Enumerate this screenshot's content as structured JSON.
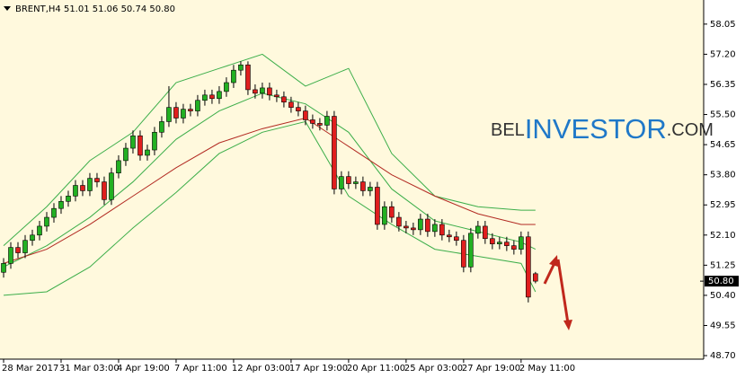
{
  "chart_data": {
    "type": "candlestick",
    "title": "BRENT,H4 51.01 51.06 50.74 50.80",
    "watermark": [
      "BEL",
      "INVESTOR",
      ".COM"
    ],
    "up_color": "#22b022",
    "down_color": "#e01e1e",
    "open": [
      51.05,
      51.3,
      51.75,
      51.6,
      51.95,
      52.1,
      52.35,
      52.6,
      52.85,
      53.05,
      53.2,
      53.5,
      53.35,
      53.7,
      53.6,
      53.1,
      53.85,
      54.2,
      54.55,
      54.9,
      54.35,
      54.5,
      55.0,
      55.3,
      55.7,
      55.4,
      55.65,
      55.6,
      55.9,
      56.05,
      55.95,
      56.15,
      56.4,
      56.75,
      56.9,
      56.2,
      56.1,
      56.25,
      56.05,
      56.0,
      55.85,
      55.7,
      55.6,
      55.35,
      55.25,
      55.2,
      55.45,
      53.4,
      53.75,
      53.55,
      53.6,
      53.35,
      53.45,
      52.4,
      52.9,
      52.6,
      52.35,
      52.3,
      52.25,
      52.55,
      52.2,
      52.4,
      52.1,
      52.05,
      51.95,
      51.2,
      52.15,
      52.35,
      52.0,
      51.85,
      51.9,
      51.8,
      51.7,
      52.05,
      51.01
    ],
    "high": [
      51.45,
      51.9,
      51.9,
      52.1,
      52.25,
      52.5,
      52.75,
      53.0,
      53.2,
      53.35,
      53.65,
      53.65,
      53.85,
      53.85,
      53.75,
      54.0,
      54.35,
      54.7,
      55.05,
      55.05,
      54.65,
      55.15,
      55.45,
      56.3,
      55.85,
      55.8,
      55.8,
      56.05,
      56.2,
      56.2,
      56.3,
      56.55,
      56.9,
      57.0,
      57.0,
      56.35,
      56.4,
      56.4,
      56.2,
      56.15,
      56.0,
      55.85,
      55.75,
      55.5,
      55.4,
      55.6,
      55.6,
      53.9,
      53.9,
      53.75,
      53.75,
      53.6,
      53.6,
      53.05,
      53.05,
      52.75,
      52.5,
      52.45,
      52.7,
      52.7,
      52.55,
      52.55,
      52.25,
      52.2,
      52.1,
      52.3,
      52.5,
      52.5,
      52.15,
      52.05,
      52.05,
      51.95,
      52.2,
      52.2,
      51.06
    ],
    "low": [
      50.9,
      51.15,
      51.45,
      51.45,
      51.8,
      51.95,
      52.2,
      52.45,
      52.7,
      52.9,
      53.05,
      53.2,
      53.2,
      53.45,
      52.95,
      52.95,
      53.7,
      54.05,
      54.4,
      54.2,
      54.2,
      54.35,
      54.85,
      55.15,
      55.25,
      55.25,
      55.45,
      55.45,
      55.75,
      55.8,
      55.8,
      56.0,
      56.25,
      56.6,
      56.05,
      55.95,
      55.95,
      55.9,
      55.85,
      55.7,
      55.55,
      55.45,
      55.2,
      55.1,
      55.05,
      55.05,
      53.25,
      53.25,
      53.4,
      53.4,
      53.2,
      53.2,
      52.25,
      52.25,
      52.45,
      52.2,
      52.15,
      52.1,
      52.1,
      52.05,
      52.05,
      51.95,
      51.9,
      51.8,
      51.05,
      51.05,
      52.0,
      51.85,
      51.7,
      51.7,
      51.65,
      51.55,
      51.55,
      50.2,
      50.74
    ],
    "close": [
      51.3,
      51.75,
      51.6,
      51.95,
      52.1,
      52.35,
      52.6,
      52.85,
      53.05,
      53.2,
      53.5,
      53.35,
      53.7,
      53.6,
      53.1,
      53.85,
      54.2,
      54.55,
      54.9,
      54.35,
      54.5,
      55.0,
      55.3,
      55.7,
      55.4,
      55.65,
      55.6,
      55.9,
      56.05,
      55.95,
      56.15,
      56.4,
      56.75,
      56.9,
      56.2,
      56.1,
      56.25,
      56.05,
      56.0,
      55.85,
      55.7,
      55.6,
      55.35,
      55.25,
      55.2,
      55.45,
      53.4,
      53.75,
      53.55,
      53.6,
      53.35,
      53.45,
      52.4,
      52.9,
      52.6,
      52.35,
      52.3,
      52.25,
      52.55,
      52.2,
      52.4,
      52.1,
      52.05,
      51.95,
      51.2,
      52.15,
      52.35,
      52.0,
      51.85,
      51.9,
      51.8,
      51.7,
      52.05,
      50.35,
      50.8
    ],
    "indicators": [
      {
        "color": "#3cae4a",
        "x": [
          0,
          6,
          12,
          18,
          24,
          30,
          36,
          42,
          48,
          54,
          60,
          66,
          72,
          74
        ],
        "values": [
          51.8,
          52.9,
          54.2,
          55.0,
          56.4,
          56.8,
          57.2,
          56.3,
          56.8,
          54.4,
          53.2,
          52.9,
          52.8,
          52.8
        ]
      },
      {
        "color": "#3cae4a",
        "x": [
          0,
          6,
          12,
          18,
          24,
          30,
          36,
          42,
          48,
          54,
          60,
          66,
          72,
          74
        ],
        "values": [
          51.2,
          51.8,
          52.6,
          53.6,
          54.8,
          55.6,
          56.1,
          55.8,
          55.0,
          53.4,
          52.5,
          52.2,
          51.9,
          51.7
        ]
      },
      {
        "color": "#3cae4a",
        "x": [
          0,
          6,
          12,
          18,
          24,
          30,
          36,
          42,
          48,
          54,
          60,
          66,
          72,
          74
        ],
        "values": [
          50.4,
          50.5,
          51.2,
          52.3,
          53.3,
          54.4,
          55.0,
          55.3,
          53.2,
          52.4,
          51.7,
          51.5,
          51.3,
          50.5
        ]
      },
      {
        "color": "#b22a22",
        "x": [
          0,
          6,
          12,
          18,
          24,
          30,
          36,
          42,
          48,
          54,
          60,
          66,
          72,
          74
        ],
        "values": [
          51.3,
          51.7,
          52.4,
          53.2,
          54.0,
          54.7,
          55.1,
          55.4,
          54.6,
          53.8,
          53.2,
          52.7,
          52.4,
          52.4
        ]
      }
    ],
    "price_label": {
      "value": 50.8,
      "label": "50.80"
    },
    "xlim": [
      -0.5,
      97.4
    ],
    "ylim": [
      48.6,
      58.73
    ],
    "xticks": [
      {
        "value": 0,
        "label": "28 Mar 2017"
      },
      {
        "value": 8,
        "label": "31 Mar 03:00"
      },
      {
        "value": 16,
        "label": "4 Apr 19:00"
      },
      {
        "value": 24,
        "label": "7 Apr 11:00"
      },
      {
        "value": 32,
        "label": "12 Apr 03:00"
      },
      {
        "value": 40,
        "label": "17 Apr 19:00"
      },
      {
        "value": 48,
        "label": "20 Apr 11:00"
      },
      {
        "value": 56,
        "label": "25 Apr 03:00"
      },
      {
        "value": 64,
        "label": "27 Apr 19:00"
      },
      {
        "value": 72,
        "label": "2 May 11:00"
      }
    ],
    "yticks": [
      58.05,
      {
        "value": 57.2,
        "label": "57.20"
      },
      56.35,
      {
        "value": 55.5,
        "label": "55.50"
      },
      54.65,
      {
        "value": 53.8,
        "label": "53.80"
      },
      52.95,
      {
        "value": 52.1,
        "label": "52.10"
      },
      51.25,
      {
        "value": 50.4,
        "label": "50.40"
      },
      49.55,
      {
        "value": 48.7,
        "label": "48.70"
      }
    ]
  }
}
